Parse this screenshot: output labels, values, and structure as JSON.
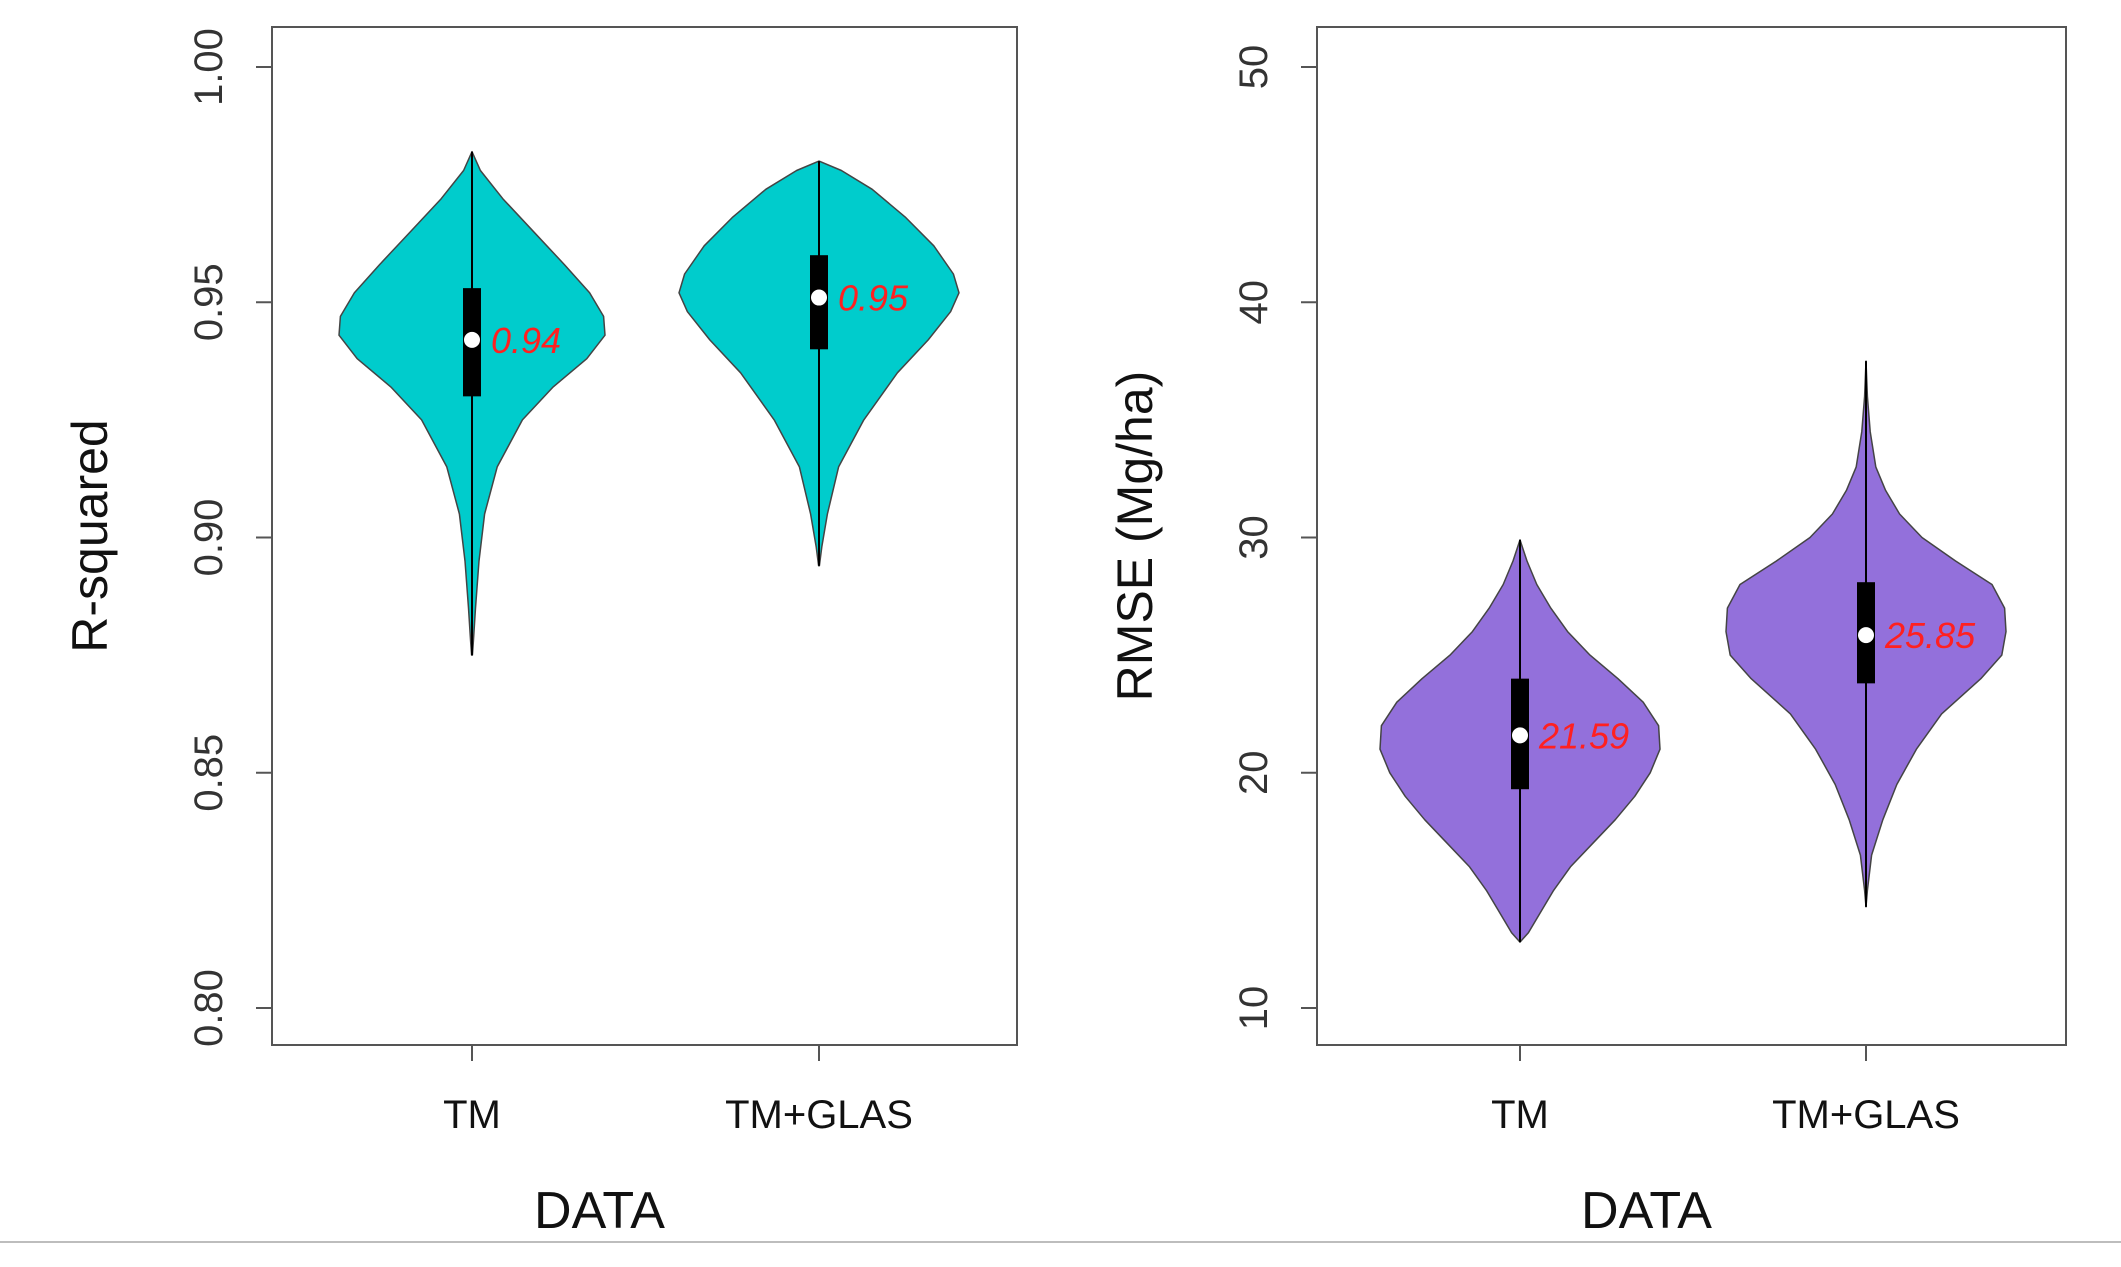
{
  "chart_data": [
    {
      "type": "violin",
      "fill": "#00cccc",
      "xlabel": "DATA",
      "ylabel": "R-squared",
      "ylim": [
        0.8,
        1.0
      ],
      "yticks": [
        "0.80",
        "0.85",
        "0.90",
        "0.95",
        "1.00"
      ],
      "ytick_values": [
        0.8,
        0.85,
        0.9,
        0.95,
        1.0
      ],
      "categories": [
        "TM",
        "TM+GLAS"
      ],
      "series": [
        {
          "name": "TM",
          "min": 0.875,
          "q1": 0.93,
          "median": 0.942,
          "q3": 0.953,
          "max": 0.982,
          "label": "0.94",
          "density": [
            [
              0.875,
              0.003
            ],
            [
              0.878,
              0.01
            ],
            [
              0.885,
              0.025
            ],
            [
              0.895,
              0.05
            ],
            [
              0.905,
              0.09
            ],
            [
              0.915,
              0.18
            ],
            [
              0.925,
              0.36
            ],
            [
              0.932,
              0.58
            ],
            [
              0.938,
              0.82
            ],
            [
              0.943,
              0.95
            ],
            [
              0.947,
              0.94
            ],
            [
              0.952,
              0.84
            ],
            [
              0.958,
              0.66
            ],
            [
              0.965,
              0.44
            ],
            [
              0.972,
              0.22
            ],
            [
              0.978,
              0.06
            ],
            [
              0.982,
              0.0
            ]
          ]
        },
        {
          "name": "TM+GLAS",
          "min": 0.894,
          "q1": 0.94,
          "median": 0.951,
          "q3": 0.96,
          "max": 0.98,
          "label": "0.95",
          "density": [
            [
              0.894,
              0.003
            ],
            [
              0.898,
              0.02
            ],
            [
              0.905,
              0.06
            ],
            [
              0.915,
              0.14
            ],
            [
              0.925,
              0.32
            ],
            [
              0.935,
              0.56
            ],
            [
              0.942,
              0.78
            ],
            [
              0.948,
              0.94
            ],
            [
              0.952,
              1.0
            ],
            [
              0.956,
              0.96
            ],
            [
              0.962,
              0.82
            ],
            [
              0.968,
              0.62
            ],
            [
              0.974,
              0.38
            ],
            [
              0.978,
              0.16
            ],
            [
              0.98,
              0.0
            ]
          ]
        }
      ]
    },
    {
      "type": "violin",
      "fill": "#9370db",
      "xlabel": "DATA",
      "ylabel": "RMSE (Mg/ha)",
      "ylim": [
        10,
        50
      ],
      "yticks": [
        "10",
        "20",
        "30",
        "40",
        "50"
      ],
      "ytick_values": [
        10,
        20,
        30,
        40,
        50
      ],
      "categories": [
        "TM",
        "TM+GLAS"
      ],
      "series": [
        {
          "name": "TM",
          "min": 12.8,
          "q1": 19.3,
          "median": 21.59,
          "q3": 24.0,
          "max": 29.9,
          "label": "21.59",
          "density": [
            [
              12.8,
              0.0
            ],
            [
              13.2,
              0.06
            ],
            [
              14.0,
              0.14
            ],
            [
              15.0,
              0.24
            ],
            [
              16.0,
              0.36
            ],
            [
              17.0,
              0.52
            ],
            [
              18.0,
              0.68
            ],
            [
              19.0,
              0.82
            ],
            [
              20.0,
              0.93
            ],
            [
              21.0,
              1.0
            ],
            [
              22.0,
              0.99
            ],
            [
              23.0,
              0.88
            ],
            [
              24.0,
              0.7
            ],
            [
              25.0,
              0.5
            ],
            [
              26.0,
              0.34
            ],
            [
              27.0,
              0.22
            ],
            [
              28.0,
              0.12
            ],
            [
              29.0,
              0.05
            ],
            [
              29.9,
              0.0
            ]
          ]
        },
        {
          "name": "TM+GLAS",
          "min": 14.3,
          "q1": 23.8,
          "median": 25.85,
          "q3": 28.1,
          "max": 37.5,
          "label": "25.85",
          "density": [
            [
              14.3,
              0.0
            ],
            [
              15.0,
              0.01
            ],
            [
              16.5,
              0.04
            ],
            [
              18.0,
              0.12
            ],
            [
              19.5,
              0.22
            ],
            [
              21.0,
              0.36
            ],
            [
              22.5,
              0.54
            ],
            [
              24.0,
              0.82
            ],
            [
              25.0,
              0.97
            ],
            [
              26.0,
              1.0
            ],
            [
              27.0,
              0.99
            ],
            [
              28.0,
              0.9
            ],
            [
              29.0,
              0.64
            ],
            [
              30.0,
              0.4
            ],
            [
              31.0,
              0.24
            ],
            [
              32.0,
              0.14
            ],
            [
              33.0,
              0.07
            ],
            [
              34.5,
              0.03
            ],
            [
              36.0,
              0.01
            ],
            [
              37.5,
              0.0
            ]
          ]
        }
      ]
    }
  ]
}
